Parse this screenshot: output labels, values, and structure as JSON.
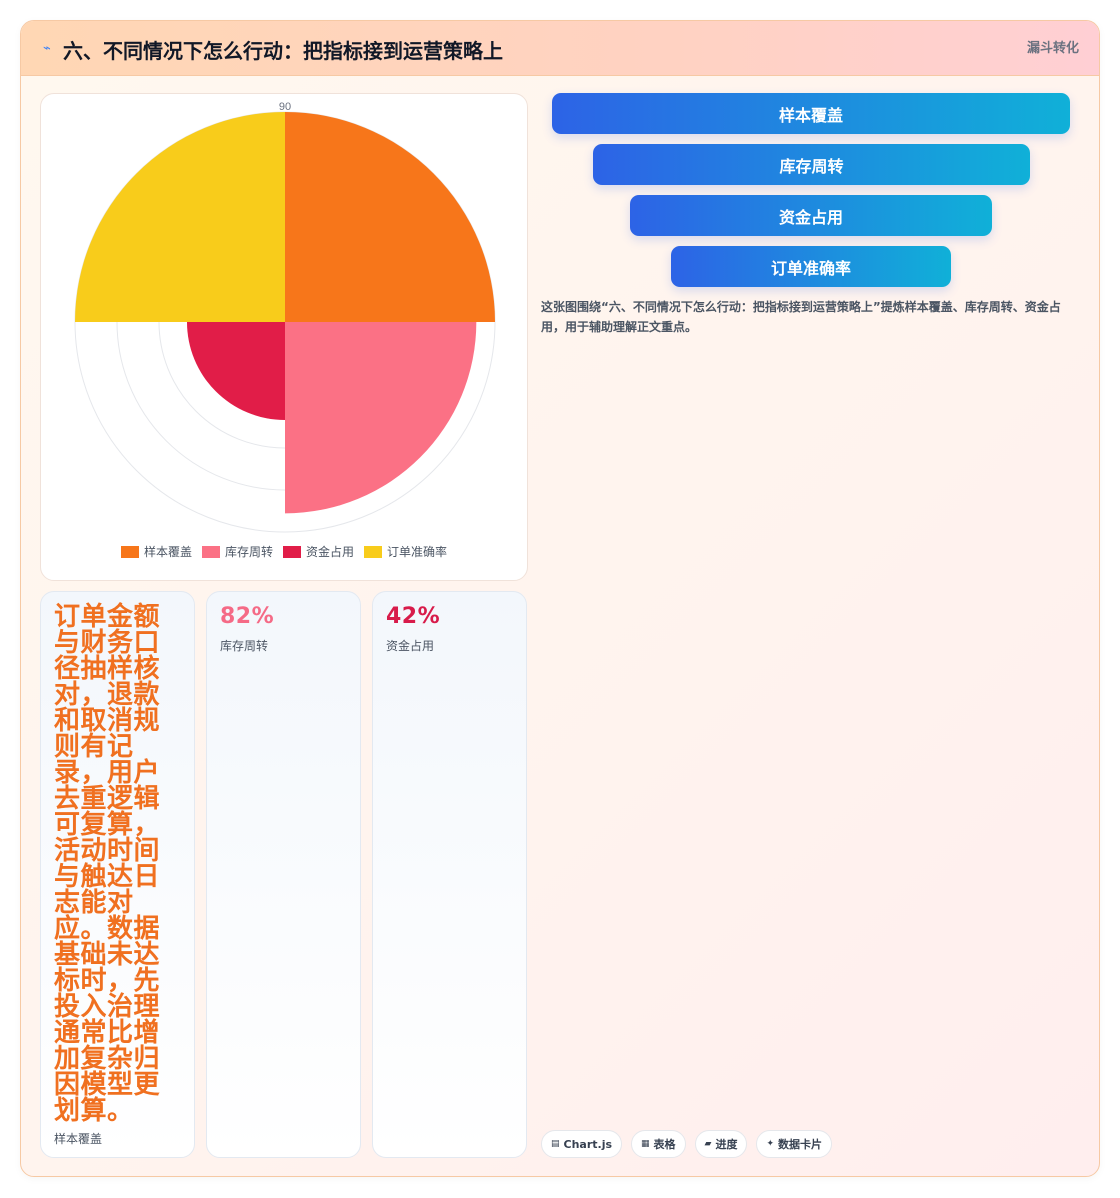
{
  "header": {
    "icon": "trend-line-icon",
    "title": "六、不同情况下怎么行动：把指标接到运营策略上",
    "tag": "漏斗转化"
  },
  "chart_data": {
    "type": "polarArea",
    "categories": [
      "样本覆盖",
      "库存周转",
      "资金占用",
      "订单准确率"
    ],
    "values": [
      90,
      82,
      42,
      90
    ],
    "colors": [
      "#f7761a",
      "#fb7185",
      "#e11d48",
      "#f8cc1b"
    ],
    "tick_labels": [
      "90"
    ],
    "legend_position": "bottom",
    "grid": true
  },
  "cards": [
    {
      "value": "订单金额与财务口径抽样核对，退款和取消规则有记录，用户去重逻辑可复算，活动时间与触达日志能对应。数据基础未达标时，先投入治理通常比增加复杂归因模型更划算。",
      "label": "样本覆盖",
      "color": "#f07020"
    },
    {
      "value": "82%",
      "label": "库存周转",
      "color": "#f56a86"
    },
    {
      "value": "42%",
      "label": "资金占用",
      "color": "#d81b4a"
    }
  ],
  "funnel": {
    "steps": [
      "样本覆盖",
      "库存周转",
      "资金占用",
      "订单准确率"
    ]
  },
  "description": "这张图围绕“六、不同情况下怎么行动：把指标接到运营策略上”提炼样本覆盖、库存周转、资金占用，用于辅助理解正文重点。",
  "tags": [
    {
      "icon": "chart-icon",
      "glyph": "▤",
      "label": "Chart.js"
    },
    {
      "icon": "table-icon",
      "glyph": "▦",
      "label": "表格"
    },
    {
      "icon": "progress-icon",
      "glyph": "▰",
      "label": "进度"
    },
    {
      "icon": "data-card-icon",
      "glyph": "✦",
      "label": "数据卡片"
    }
  ]
}
